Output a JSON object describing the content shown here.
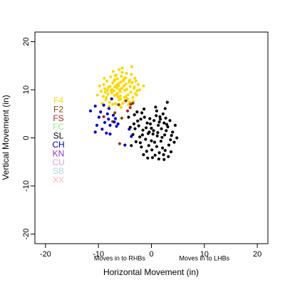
{
  "chart_data": {
    "type": "scatter",
    "xlabel": "Horizontal Movement (in)",
    "ylabel": "Vertical Movement (in)",
    "xlim": [
      -22,
      22
    ],
    "ylim": [
      -22,
      22
    ],
    "xticks": [
      -20,
      -10,
      0,
      10,
      20
    ],
    "yticks": [
      -20,
      -10,
      0,
      10,
      20
    ],
    "grid": false,
    "legend_position": "left",
    "annotations": [
      {
        "text": "Moves in to RHBs",
        "x": -6,
        "y": -25.5
      },
      {
        "text": "Moves in to LHBs",
        "x": 10,
        "y": -25.5
      }
    ],
    "legend": [
      {
        "label": "F4",
        "color": "#FFD700"
      },
      {
        "label": "F2",
        "color": "#8B4513"
      },
      {
        "label": "FS",
        "color": "#B22222"
      },
      {
        "label": "FC",
        "color": "#90EE90"
      },
      {
        "label": "SL",
        "color": "#000000"
      },
      {
        "label": "CH",
        "color": "#0000CD"
      },
      {
        "label": "KN",
        "color": "#9932CC"
      },
      {
        "label": "CU",
        "color": "#DDA0DD"
      },
      {
        "label": "SB",
        "color": "#ADD8E6"
      },
      {
        "label": "XX",
        "color": "#FFB6C1"
      }
    ],
    "series": [
      {
        "name": "F4",
        "color": "#FFD700",
        "points": [
          [
            -7.1,
            9.8
          ],
          [
            -6.5,
            10.4
          ],
          [
            -5.9,
            8.7
          ],
          [
            -8.2,
            9.1
          ],
          [
            -4.8,
            11.2
          ],
          [
            -6.9,
            12.1
          ],
          [
            -5.2,
            10.8
          ],
          [
            -7.6,
            8.2
          ],
          [
            -3.9,
            9.5
          ],
          [
            -6.1,
            7.9
          ],
          [
            -8.8,
            10.2
          ],
          [
            -4.5,
            8.1
          ],
          [
            -5.7,
            12.8
          ],
          [
            -7.3,
            11.4
          ],
          [
            -6.4,
            9.2
          ],
          [
            -3.2,
            10.6
          ],
          [
            -9.1,
            8.6
          ],
          [
            -5.0,
            9.9
          ],
          [
            -6.7,
            13.1
          ],
          [
            -4.1,
            12.0
          ],
          [
            -7.9,
            7.4
          ],
          [
            -5.4,
            7.2
          ],
          [
            -2.8,
            8.9
          ],
          [
            -8.4,
            11.8
          ],
          [
            -6.2,
            10.9
          ],
          [
            -4.6,
            10.1
          ],
          [
            -7.0,
            8.8
          ],
          [
            -5.8,
            11.6
          ],
          [
            -3.6,
            11.5
          ],
          [
            -9.5,
            9.7
          ],
          [
            -6.0,
            6.8
          ],
          [
            -4.3,
            6.9
          ],
          [
            -7.7,
            12.7
          ],
          [
            -5.5,
            13.6
          ],
          [
            -2.5,
            11.1
          ],
          [
            -8.0,
            6.5
          ],
          [
            -6.6,
            11.0
          ],
          [
            -3.4,
            7.6
          ],
          [
            -9.8,
            10.8
          ],
          [
            -5.1,
            8.4
          ],
          [
            -7.4,
            10.0
          ],
          [
            -4.9,
            12.5
          ],
          [
            -6.3,
            8.5
          ],
          [
            -8.6,
            7.9
          ],
          [
            -3.0,
            9.2
          ],
          [
            -5.6,
            10.3
          ],
          [
            -7.2,
            13.8
          ],
          [
            -4.0,
            10.7
          ],
          [
            -6.8,
            7.1
          ],
          [
            -2.2,
            10.0
          ],
          [
            -8.9,
            12.4
          ],
          [
            -5.3,
            11.9
          ],
          [
            -6.1,
            14.2
          ],
          [
            -3.8,
            13.2
          ],
          [
            -7.5,
            9.4
          ],
          [
            -4.4,
            9.0
          ],
          [
            -9.3,
            7.2
          ],
          [
            -5.9,
            9.6
          ],
          [
            -6.9,
            10.6
          ],
          [
            -3.1,
            12.4
          ],
          [
            -8.1,
            10.5
          ],
          [
            -5.0,
            7.7
          ],
          [
            -7.0,
            11.9
          ],
          [
            -4.7,
            13.4
          ],
          [
            -6.4,
            12.3
          ],
          [
            -2.7,
            9.8
          ],
          [
            -8.5,
            8.4
          ],
          [
            -5.7,
            6.3
          ],
          [
            -6.6,
            9.0
          ],
          [
            -3.5,
            8.4
          ],
          [
            -10.2,
            8.9
          ],
          [
            -4.2,
            11.6
          ],
          [
            -7.8,
            10.7
          ],
          [
            -5.2,
            12.2
          ],
          [
            -6.0,
            10.0
          ],
          [
            -3.3,
            10.3
          ],
          [
            -8.7,
            9.5
          ],
          [
            -4.8,
            8.6
          ],
          [
            -7.3,
            7.0
          ],
          [
            -5.5,
            14.5
          ],
          [
            -1.5,
            10.8
          ],
          [
            -3.7,
            14.8
          ],
          [
            -6.8,
            12.9
          ],
          [
            -9.0,
            11.1
          ],
          [
            -4.1,
            7.4
          ],
          [
            -5.8,
            8.1
          ],
          [
            -7.6,
            9.9
          ],
          [
            -2.9,
            11.8
          ],
          [
            -6.2,
            11.3
          ],
          [
            -8.3,
            9.9
          ]
        ]
      },
      {
        "name": "F2",
        "color": "#8B4513",
        "points": [
          [
            -6.2,
            6.9
          ],
          [
            -4.8,
            7.7
          ],
          [
            -6.9,
            5.2
          ],
          [
            -4.0,
            6.3
          ],
          [
            -3.5,
            7.2
          ],
          [
            -5.6,
            4.1
          ],
          [
            -7.3,
            3.4
          ],
          [
            -6.0,
            -1.2
          ]
        ]
      },
      {
        "name": "FS",
        "color": "#B22222",
        "points": [
          [
            -9.0,
            4.4
          ],
          [
            -4.5,
            5.6
          ],
          [
            -3.9,
            7.0
          ]
        ]
      },
      {
        "name": "CH",
        "color": "#0000CD",
        "points": [
          [
            -11.5,
            5.6
          ],
          [
            -10.6,
            6.6
          ],
          [
            -9.9,
            4.3
          ],
          [
            -8.8,
            3.2
          ],
          [
            -8.3,
            5.0
          ],
          [
            -7.8,
            2.6
          ],
          [
            -9.3,
            1.8
          ],
          [
            -10.6,
            1.2
          ],
          [
            -7.2,
            4.7
          ],
          [
            -6.6,
            2.4
          ],
          [
            -8.0,
            6.1
          ],
          [
            -7.5,
            8.1
          ],
          [
            -9.6,
            5.4
          ],
          [
            -7.0,
            3.3
          ],
          [
            -6.8,
            4.0
          ],
          [
            -8.5,
            1.0
          ],
          [
            -4.2,
            1.8
          ],
          [
            -3.8,
            0.3
          ],
          [
            -5.0,
            -1.5
          ],
          [
            -10.3,
            2.6
          ],
          [
            -8.1,
            3.9
          ],
          [
            -6.3,
            2.9
          ],
          [
            -9.0,
            6.8
          ],
          [
            -7.8,
            0.8
          ]
        ]
      },
      {
        "name": "SL",
        "color": "#000000",
        "points": [
          [
            0.0,
            2.0
          ],
          [
            1.2,
            1.1
          ],
          [
            -0.8,
            3.1
          ],
          [
            2.5,
            0.6
          ],
          [
            -1.6,
            1.6
          ],
          [
            0.6,
            -0.9
          ],
          [
            3.1,
            2.3
          ],
          [
            -2.2,
            0.2
          ],
          [
            1.7,
            3.9
          ],
          [
            -0.5,
            -1.6
          ],
          [
            2.1,
            -2.1
          ],
          [
            -3.1,
            1.9
          ],
          [
            0.9,
            4.6
          ],
          [
            3.6,
            -0.4
          ],
          [
            -1.1,
            -0.3
          ],
          [
            1.5,
            -3.1
          ],
          [
            -2.6,
            3.5
          ],
          [
            2.8,
            1.5
          ],
          [
            0.3,
            0.8
          ],
          [
            -0.2,
            2.9
          ],
          [
            4.0,
            1.2
          ],
          [
            -1.9,
            -1.9
          ],
          [
            1.0,
            -1.8
          ],
          [
            2.4,
            3.1
          ],
          [
            -2.9,
            -0.8
          ],
          [
            0.5,
            3.6
          ],
          [
            3.3,
            -1.5
          ],
          [
            -1.3,
            4.3
          ],
          [
            2.0,
            0.1
          ],
          [
            -0.6,
            0.9
          ],
          [
            1.8,
            -0.7
          ],
          [
            -3.5,
            0.7
          ],
          [
            0.1,
            -2.5
          ],
          [
            2.7,
            4.1
          ],
          [
            -1.0,
            2.1
          ],
          [
            3.8,
            0.5
          ],
          [
            -2.4,
            2.5
          ],
          [
            1.3,
            2.6
          ],
          [
            0.7,
            -3.6
          ],
          [
            -0.9,
            -2.8
          ],
          [
            2.3,
            -3.5
          ],
          [
            -3.2,
            4.8
          ],
          [
            1.6,
            4.4
          ],
          [
            4.3,
            -0.9
          ],
          [
            -1.7,
            0.6
          ],
          [
            0.4,
            1.5
          ],
          [
            2.9,
            2.8
          ],
          [
            -2.1,
            -1.0
          ],
          [
            1.1,
            0.4
          ],
          [
            3.5,
            3.6
          ],
          [
            -4.0,
            2.2
          ],
          [
            0.2,
            -4.1
          ],
          [
            1.4,
            -4.4
          ],
          [
            2.6,
            -2.6
          ],
          [
            -0.3,
            4.0
          ],
          [
            -2.7,
            5.4
          ],
          [
            -1.4,
            6.0
          ],
          [
            0.8,
            6.4
          ],
          [
            2.2,
            5.0
          ],
          [
            3.0,
            7.4
          ],
          [
            -3.8,
            -1.6
          ],
          [
            -1.5,
            -3.5
          ],
          [
            4.5,
            2.6
          ],
          [
            0.0,
            -0.6
          ],
          [
            1.9,
            1.9
          ],
          [
            -4.3,
            4.3
          ],
          [
            2.4,
            -4.5
          ],
          [
            3.2,
            -3.9
          ],
          [
            -2.0,
            3.9
          ],
          [
            -0.4,
            1.2
          ],
          [
            1.0,
            5.6
          ],
          [
            2.6,
            6.1
          ],
          [
            4.8,
            0.0
          ],
          [
            -3.3,
            2.9
          ],
          [
            -0.7,
            -4.2
          ],
          [
            3.7,
            -2.9
          ],
          [
            1.5,
            3.3
          ],
          [
            -1.8,
            5.2
          ]
        ]
      }
    ]
  }
}
